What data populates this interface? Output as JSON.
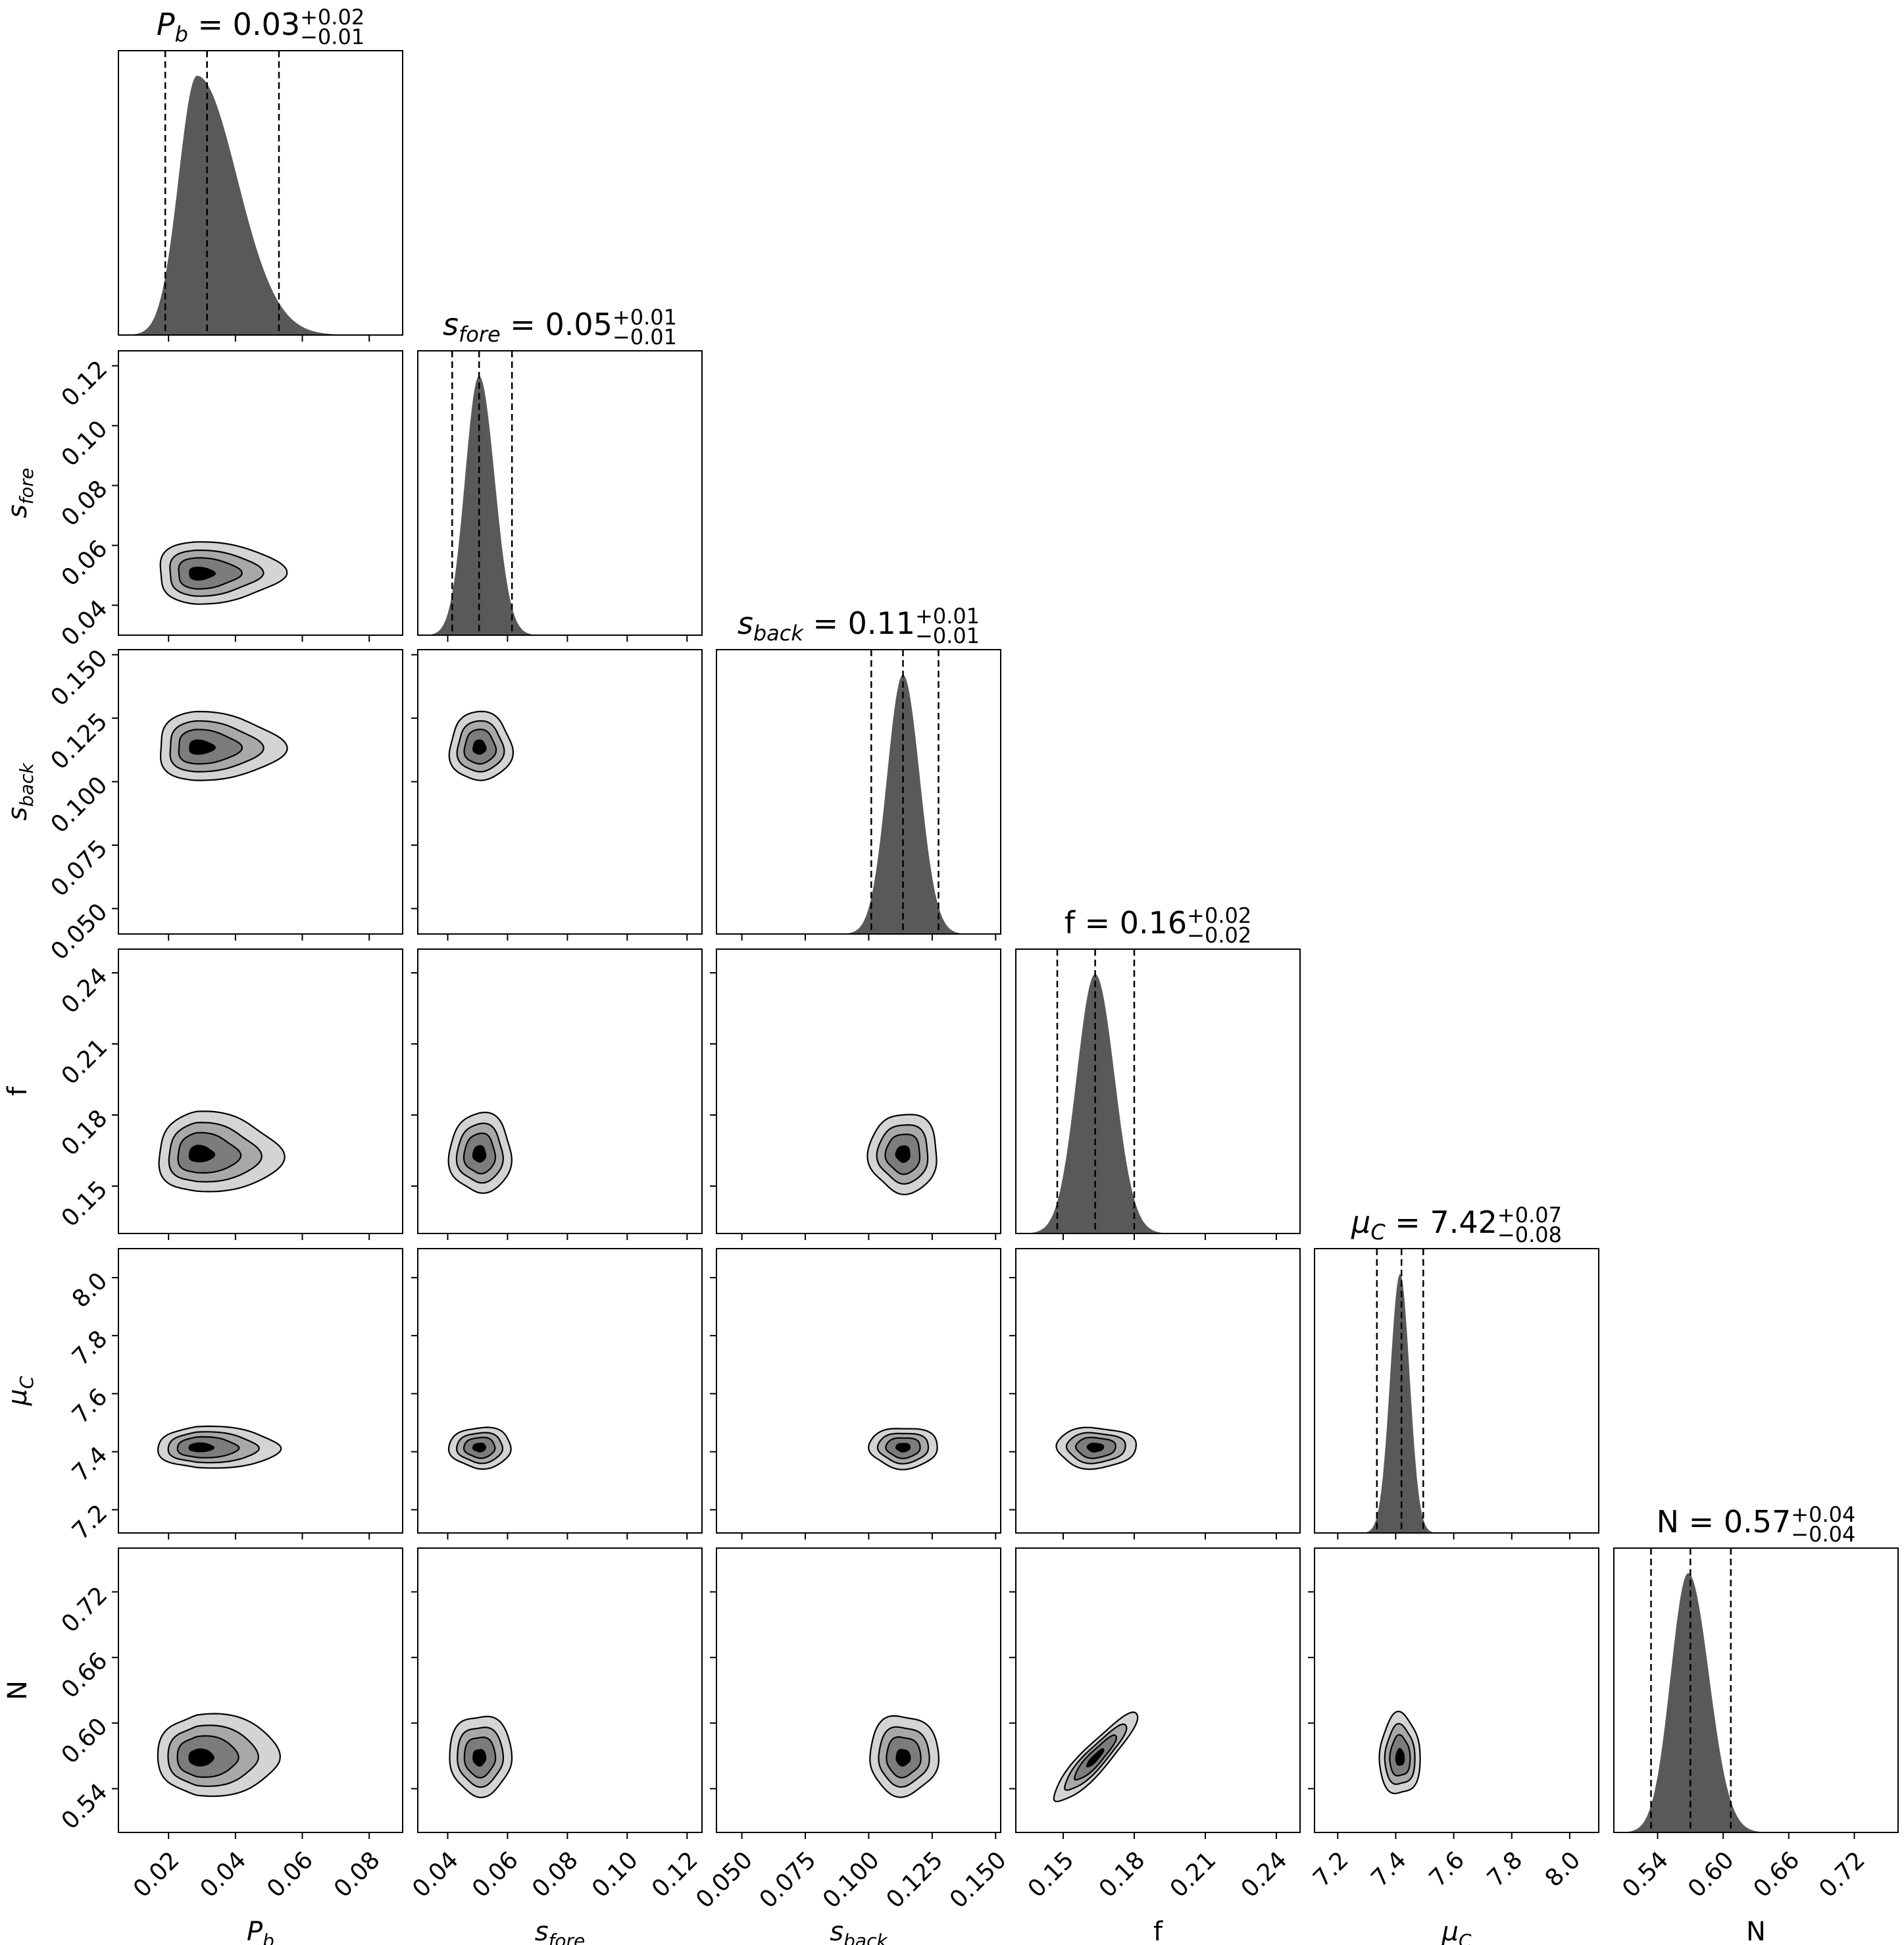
{
  "chart_data": {
    "type": "corner",
    "parameters": [
      {
        "id": "Pb",
        "label": "P",
        "label_sub": "b",
        "italic": true,
        "title_value": "0.03",
        "title_plus": "+0.02",
        "title_minus": "−0.01",
        "range": [
          0.005,
          0.09
        ],
        "ticks": [
          0.02,
          0.04,
          0.06,
          0.08
        ],
        "tick_labels": [
          "0.02",
          "0.04",
          "0.06",
          "0.08"
        ],
        "quantiles": [
          0.019,
          0.0315,
          0.053
        ],
        "hist": {
          "mode": 0.0285,
          "sigma_left": 0.0055,
          "sigma_right": 0.012
        },
        "color": "#595959"
      },
      {
        "id": "sfore",
        "label": "s",
        "label_sub": "fore",
        "italic": true,
        "title_value": "0.05",
        "title_plus": "+0.01",
        "title_minus": "−0.01",
        "range": [
          0.03,
          0.125
        ],
        "ticks": [
          0.04,
          0.06,
          0.08,
          0.1,
          0.12
        ],
        "tick_labels": [
          "0.04",
          "0.06",
          "0.08",
          "0.10",
          "0.12"
        ],
        "quantiles": [
          0.0415,
          0.0505,
          0.0615
        ],
        "hist": {
          "mode": 0.0505,
          "sigma_left": 0.0047,
          "sigma_right": 0.0052
        },
        "color": "#595959"
      },
      {
        "id": "sback",
        "label": "s",
        "label_sub": "back",
        "italic": true,
        "title_value": "0.11",
        "title_plus": "+0.01",
        "title_minus": "−0.01",
        "range": [
          0.04,
          0.152
        ],
        "ticks": [
          0.05,
          0.075,
          0.1,
          0.125,
          0.15
        ],
        "tick_labels": [
          "0.050",
          "0.075",
          "0.100",
          "0.125",
          "0.150"
        ],
        "quantiles": [
          0.101,
          0.1135,
          0.1275
        ],
        "hist": {
          "mode": 0.1135,
          "sigma_left": 0.0063,
          "sigma_right": 0.0066
        },
        "color": "#595959"
      },
      {
        "id": "f",
        "label": "f",
        "label_sub": "",
        "italic": false,
        "title_value": "0.16",
        "title_plus": "+0.02",
        "title_minus": "−0.02",
        "range": [
          0.13,
          0.25
        ],
        "ticks": [
          0.15,
          0.18,
          0.21,
          0.24
        ],
        "tick_labels": [
          "0.15",
          "0.18",
          "0.21",
          "0.24"
        ],
        "quantiles": [
          0.1475,
          0.1635,
          0.18
        ],
        "hist": {
          "mode": 0.1635,
          "sigma_left": 0.0078,
          "sigma_right": 0.0082
        },
        "color": "#595959"
      },
      {
        "id": "muC",
        "label": "μ",
        "label_sub": "C",
        "italic": true,
        "title_value": "7.42",
        "title_plus": "+0.07",
        "title_minus": "−0.08",
        "range": [
          7.12,
          8.1
        ],
        "ticks": [
          7.2,
          7.4,
          7.6,
          7.8,
          8.0
        ],
        "tick_labels": [
          "7.2",
          "7.4",
          "7.6",
          "7.8",
          "8.0"
        ],
        "quantiles": [
          7.335,
          7.42,
          7.495
        ],
        "hist": {
          "mode": 7.415,
          "sigma_left": 0.034,
          "sigma_right": 0.033
        },
        "color": "#595959"
      },
      {
        "id": "N",
        "label": "N",
        "label_sub": "",
        "italic": false,
        "title_value": "0.57",
        "title_plus": "+0.04",
        "title_minus": "−0.04",
        "range": [
          0.5,
          0.76
        ],
        "ticks": [
          0.54,
          0.6,
          0.66,
          0.72
        ],
        "tick_labels": [
          "0.54",
          "0.60",
          "0.66",
          "0.72"
        ],
        "quantiles": [
          0.534,
          0.57,
          0.607
        ],
        "hist": {
          "mode": 0.568,
          "sigma_left": 0.016,
          "sigma_right": 0.019
        },
        "color": "#595959"
      }
    ],
    "contour_fill_colors": [
      "#d4d4d4",
      "#a8a8a8",
      "#7c7c7c",
      "#000000"
    ],
    "contour_line_color": "#000000",
    "quantile_line_style": "dashed"
  }
}
